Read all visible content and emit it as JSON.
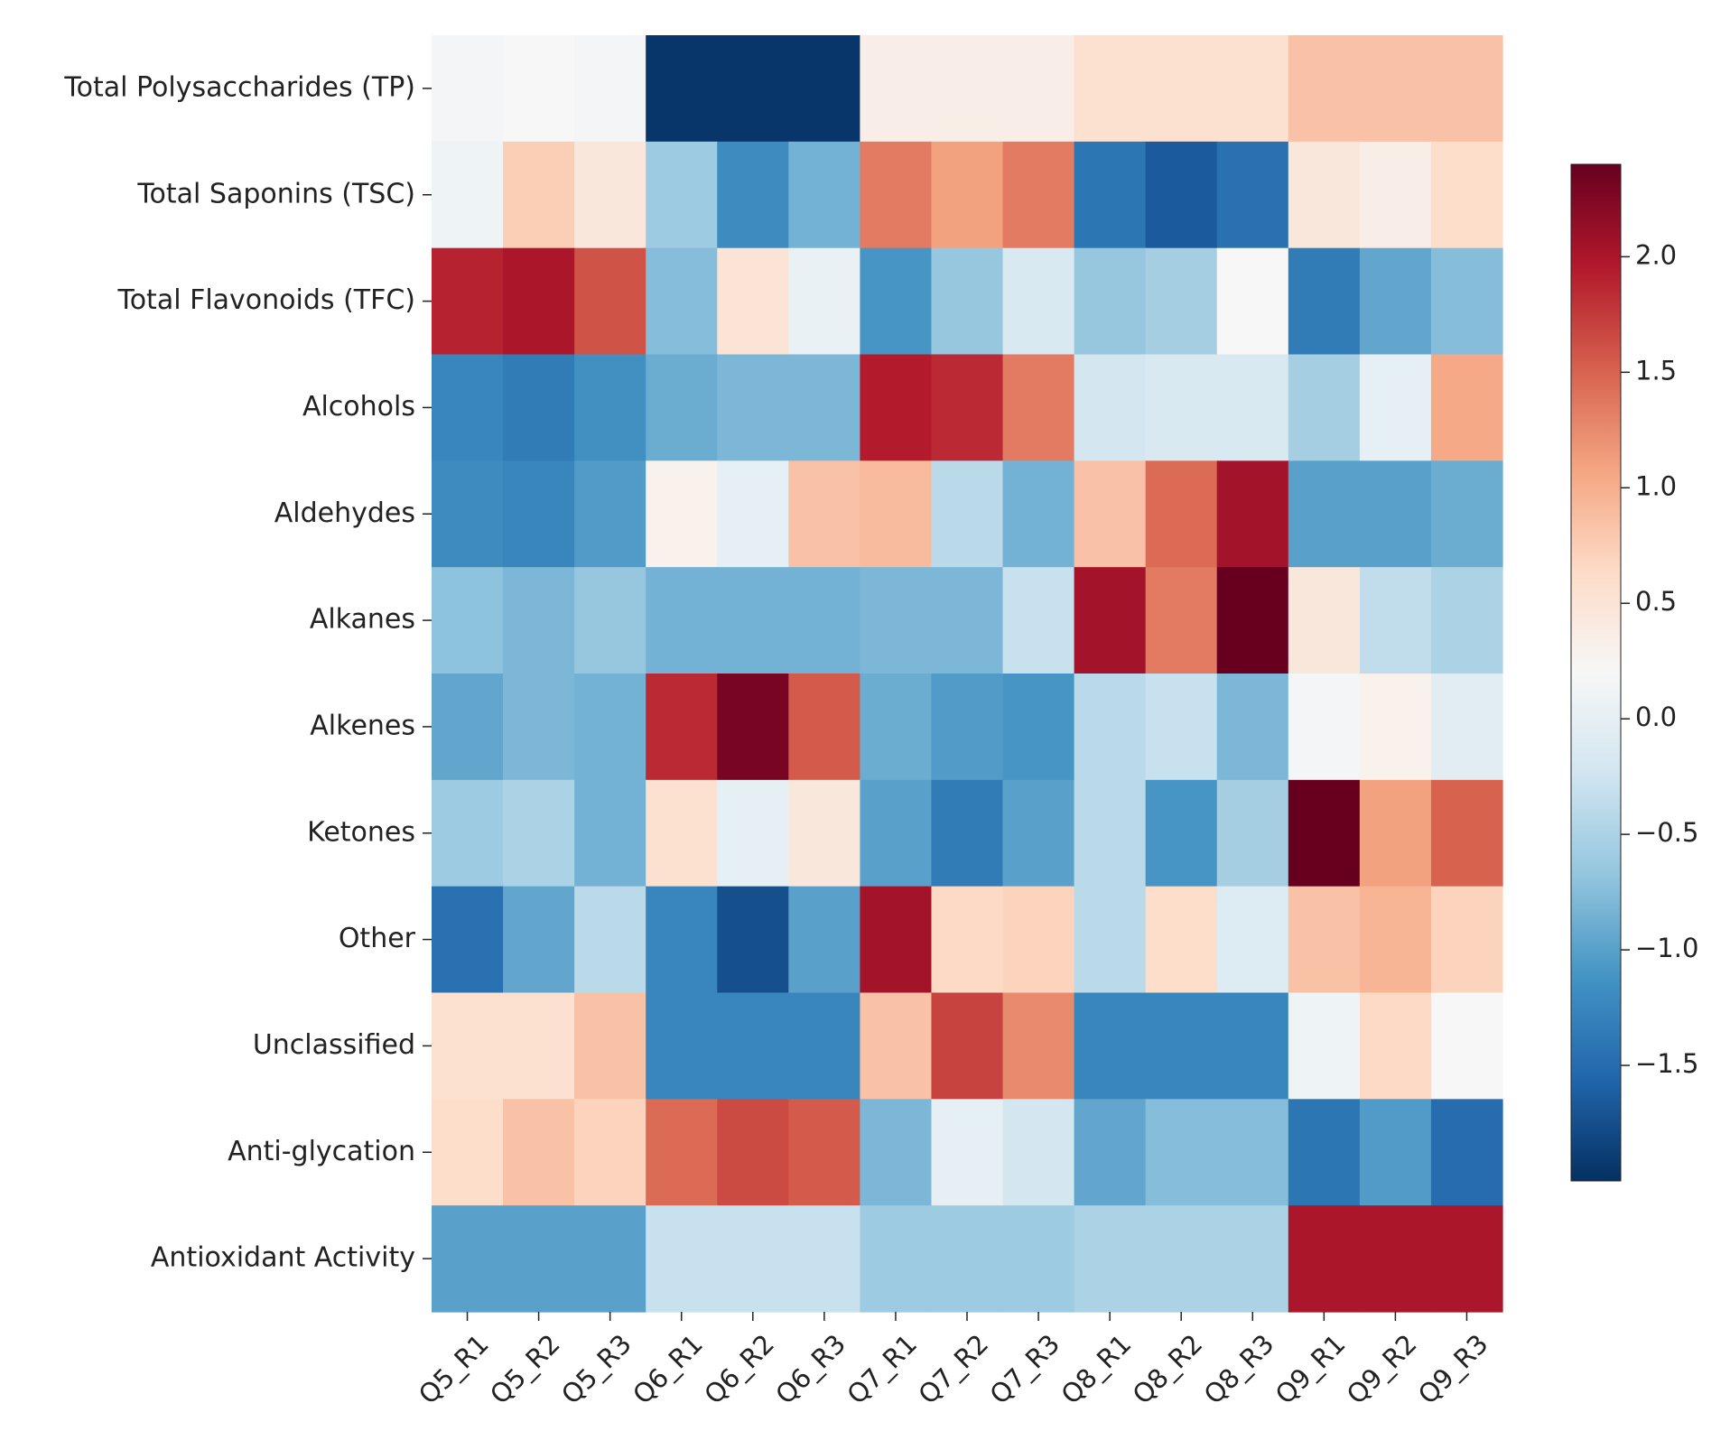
{
  "chart_data": {
    "type": "heatmap",
    "title": "",
    "xlabel": "",
    "ylabel": "",
    "columns": [
      "Q5_R1",
      "Q5_R2",
      "Q5_R3",
      "Q6_R1",
      "Q6_R2",
      "Q6_R3",
      "Q7_R1",
      "Q7_R2",
      "Q7_R3",
      "Q8_R1",
      "Q8_R2",
      "Q8_R3",
      "Q9_R1",
      "Q9_R2",
      "Q9_R3"
    ],
    "rows": [
      "Total Polysaccharides (TP)",
      "Total Saponins (TSC)",
      "Total Flavonoids (TFC)",
      "Alcohols",
      "Aldehydes",
      "Alkanes",
      "Alkenes",
      "Ketones",
      "Other",
      "Unclassified",
      "Anti-glycation",
      "Antioxidant Activity"
    ],
    "values": [
      [
        0.15,
        0.2,
        0.15,
        -1.95,
        -1.95,
        -1.95,
        0.35,
        0.35,
        0.35,
        0.55,
        0.55,
        0.55,
        0.85,
        0.85,
        0.85
      ],
      [
        0.1,
        0.75,
        0.45,
        -0.6,
        -1.2,
        -0.85,
        1.35,
        1.1,
        1.35,
        -1.4,
        -1.65,
        -1.45,
        0.45,
        0.35,
        0.6
      ],
      [
        1.9,
        2.0,
        1.6,
        -0.75,
        0.5,
        0.05,
        -1.1,
        -0.65,
        -0.15,
        -0.65,
        -0.55,
        0.2,
        -1.35,
        -0.95,
        -0.75
      ],
      [
        -1.25,
        -1.35,
        -1.15,
        -0.9,
        -0.8,
        -0.8,
        1.95,
        1.85,
        1.35,
        -0.2,
        -0.15,
        -0.15,
        -0.55,
        0.0,
        1.05
      ],
      [
        -1.2,
        -1.25,
        -1.05,
        0.3,
        0.0,
        0.85,
        0.9,
        -0.4,
        -0.85,
        0.85,
        1.45,
        2.05,
        -1.0,
        -1.0,
        -0.9
      ],
      [
        -0.7,
        -0.8,
        -0.65,
        -0.85,
        -0.85,
        -0.85,
        -0.8,
        -0.8,
        -0.3,
        2.05,
        1.35,
        2.45,
        0.45,
        -0.35,
        -0.5
      ],
      [
        -0.95,
        -0.8,
        -0.85,
        1.85,
        2.3,
        1.55,
        -0.9,
        -1.05,
        -1.1,
        -0.4,
        -0.3,
        -0.8,
        0.15,
        0.3,
        -0.05
      ],
      [
        -0.6,
        -0.5,
        -0.85,
        0.55,
        0.0,
        0.45,
        -1.0,
        -1.35,
        -1.0,
        -0.4,
        -1.1,
        -0.55,
        2.5,
        1.1,
        1.5
      ],
      [
        -1.45,
        -0.95,
        -0.4,
        -1.25,
        -1.75,
        -1.0,
        2.05,
        0.65,
        0.7,
        -0.4,
        0.6,
        -0.1,
        0.85,
        0.95,
        0.7
      ],
      [
        0.55,
        0.55,
        0.85,
        -1.25,
        -1.25,
        -1.25,
        0.85,
        1.7,
        1.25,
        -1.25,
        -1.25,
        -1.25,
        0.1,
        0.65,
        0.2
      ],
      [
        0.6,
        0.85,
        0.7,
        1.45,
        1.65,
        1.55,
        -0.8,
        0.0,
        -0.2,
        -0.95,
        -0.75,
        -0.75,
        -1.4,
        -1.05,
        -1.5
      ],
      [
        -1.0,
        -1.0,
        -1.0,
        -0.3,
        -0.3,
        -0.3,
        -0.6,
        -0.6,
        -0.6,
        -0.5,
        -0.5,
        -0.5,
        2.0,
        2.0,
        2.0
      ]
    ],
    "vmin": -2.0,
    "vmax": 2.4,
    "colormap": "RdBu_r",
    "colorbar_ticks": [
      {
        "value": 2.0,
        "label": "2.0"
      },
      {
        "value": 1.5,
        "label": "1.5"
      },
      {
        "value": 1.0,
        "label": "1.0"
      },
      {
        "value": 0.5,
        "label": "0.5"
      },
      {
        "value": 0.0,
        "label": "0.0"
      },
      {
        "value": -0.5,
        "label": "−0.5"
      },
      {
        "value": -1.0,
        "label": "−1.0"
      },
      {
        "value": -1.5,
        "label": "−1.5"
      }
    ],
    "legend": "colorbar-right",
    "grid": false
  }
}
